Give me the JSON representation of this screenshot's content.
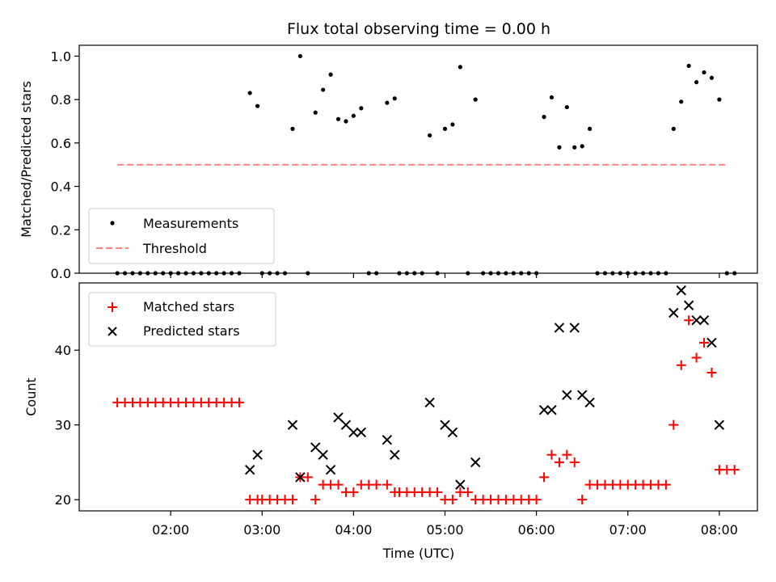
{
  "chart_data": [
    {
      "type": "scatter",
      "title": "Flux total observing time = 0.00 h",
      "ylabel": "Matched/Predicted stars",
      "ylim": [
        0.0,
        1.05
      ],
      "yticks": [
        0.0,
        0.2,
        0.4,
        0.6,
        0.8,
        1.0
      ],
      "ytick_labels": [
        "0.0",
        "0.2",
        "0.4",
        "0.6",
        "0.8",
        "1.0"
      ],
      "grid": false,
      "legend_position": "lower-left",
      "series": [
        {
          "name": "Measurements",
          "marker": "dot",
          "color": "#000000",
          "points": [
            [
              "01:25",
              0
            ],
            [
              "01:30",
              0
            ],
            [
              "01:35",
              0
            ],
            [
              "01:40",
              0
            ],
            [
              "01:45",
              0
            ],
            [
              "01:50",
              0
            ],
            [
              "01:55",
              0
            ],
            [
              "02:00",
              0
            ],
            [
              "02:05",
              0
            ],
            [
              "02:10",
              0
            ],
            [
              "02:15",
              0
            ],
            [
              "02:20",
              0
            ],
            [
              "02:25",
              0
            ],
            [
              "02:30",
              0
            ],
            [
              "02:35",
              0
            ],
            [
              "02:40",
              0
            ],
            [
              "02:45",
              0
            ],
            [
              "02:52",
              0.83
            ],
            [
              "02:57",
              0.77
            ],
            [
              "03:00",
              0
            ],
            [
              "03:05",
              0
            ],
            [
              "03:10",
              0
            ],
            [
              "03:15",
              0
            ],
            [
              "03:20",
              0.665
            ],
            [
              "03:25",
              1.0
            ],
            [
              "03:30",
              0
            ],
            [
              "03:35",
              0.74
            ],
            [
              "03:40",
              0.845
            ],
            [
              "03:45",
              0.915
            ],
            [
              "03:50",
              0.71
            ],
            [
              "03:55",
              0.7
            ],
            [
              "04:00",
              0.725
            ],
            [
              "04:05",
              0.76
            ],
            [
              "04:10",
              0
            ],
            [
              "04:15",
              0
            ],
            [
              "04:22",
              0.785
            ],
            [
              "04:27",
              0.805
            ],
            [
              "04:30",
              0
            ],
            [
              "04:35",
              0
            ],
            [
              "04:40",
              0
            ],
            [
              "04:45",
              0
            ],
            [
              "04:50",
              0.635
            ],
            [
              "04:55",
              0
            ],
            [
              "05:00",
              0.665
            ],
            [
              "05:05",
              0.685
            ],
            [
              "05:10",
              0.95
            ],
            [
              "05:15",
              0
            ],
            [
              "05:20",
              0.8
            ],
            [
              "05:25",
              0
            ],
            [
              "05:30",
              0
            ],
            [
              "05:35",
              0
            ],
            [
              "05:40",
              0
            ],
            [
              "05:45",
              0
            ],
            [
              "05:50",
              0
            ],
            [
              "05:55",
              0
            ],
            [
              "06:00",
              0
            ],
            [
              "06:05",
              0.72
            ],
            [
              "06:10",
              0.81
            ],
            [
              "06:15",
              0.58
            ],
            [
              "06:20",
              0.765
            ],
            [
              "06:25",
              0.58
            ],
            [
              "06:30",
              0.585
            ],
            [
              "06:35",
              0.665
            ],
            [
              "06:40",
              0
            ],
            [
              "06:45",
              0
            ],
            [
              "06:50",
              0
            ],
            [
              "06:55",
              0
            ],
            [
              "07:00",
              0
            ],
            [
              "07:05",
              0
            ],
            [
              "07:10",
              0
            ],
            [
              "07:15",
              0
            ],
            [
              "07:20",
              0
            ],
            [
              "07:25",
              0
            ],
            [
              "07:30",
              0.665
            ],
            [
              "07:35",
              0.79
            ],
            [
              "07:40",
              0.955
            ],
            [
              "07:45",
              0.88
            ],
            [
              "07:50",
              0.925
            ],
            [
              "07:55",
              0.9
            ],
            [
              "08:00",
              0.8
            ],
            [
              "08:05",
              0
            ],
            [
              "08:10",
              0
            ]
          ]
        },
        {
          "name": "Threshold",
          "marker": "dashed-line",
          "color": "#ff7f7f",
          "points": [
            [
              "01:25",
              0.5
            ],
            [
              "08:05",
              0.5
            ]
          ]
        }
      ]
    },
    {
      "type": "scatter",
      "xlabel": "Time (UTC)",
      "ylabel": "Count",
      "ylim": [
        18.5,
        49
      ],
      "yticks": [
        20,
        30,
        40
      ],
      "ytick_labels": [
        "20",
        "30",
        "40"
      ],
      "xlim": [
        "01:00",
        "08:25"
      ],
      "xticks": [
        "02:00",
        "03:00",
        "04:00",
        "05:00",
        "06:00",
        "07:00",
        "08:00"
      ],
      "grid": false,
      "legend_position": "upper-left",
      "series": [
        {
          "name": "Matched stars",
          "marker": "plus",
          "color": "#ff0000",
          "points": [
            [
              "01:25",
              33
            ],
            [
              "01:30",
              33
            ],
            [
              "01:35",
              33
            ],
            [
              "01:40",
              33
            ],
            [
              "01:45",
              33
            ],
            [
              "01:50",
              33
            ],
            [
              "01:55",
              33
            ],
            [
              "02:00",
              33
            ],
            [
              "02:05",
              33
            ],
            [
              "02:10",
              33
            ],
            [
              "02:15",
              33
            ],
            [
              "02:20",
              33
            ],
            [
              "02:25",
              33
            ],
            [
              "02:30",
              33
            ],
            [
              "02:35",
              33
            ],
            [
              "02:40",
              33
            ],
            [
              "02:45",
              33
            ],
            [
              "02:52",
              20
            ],
            [
              "02:57",
              20
            ],
            [
              "03:00",
              20
            ],
            [
              "03:05",
              20
            ],
            [
              "03:10",
              20
            ],
            [
              "03:15",
              20
            ],
            [
              "03:20",
              20
            ],
            [
              "03:25",
              23
            ],
            [
              "03:30",
              23
            ],
            [
              "03:35",
              20
            ],
            [
              "03:40",
              22
            ],
            [
              "03:45",
              22
            ],
            [
              "03:50",
              22
            ],
            [
              "03:55",
              21
            ],
            [
              "04:00",
              21
            ],
            [
              "04:05",
              22
            ],
            [
              "04:10",
              22
            ],
            [
              "04:15",
              22
            ],
            [
              "04:22",
              22
            ],
            [
              "04:27",
              21
            ],
            [
              "04:30",
              21
            ],
            [
              "04:35",
              21
            ],
            [
              "04:40",
              21
            ],
            [
              "04:45",
              21
            ],
            [
              "04:50",
              21
            ],
            [
              "04:55",
              21
            ],
            [
              "05:00",
              20
            ],
            [
              "05:05",
              20
            ],
            [
              "05:10",
              21
            ],
            [
              "05:15",
              21
            ],
            [
              "05:20",
              20
            ],
            [
              "05:25",
              20
            ],
            [
              "05:30",
              20
            ],
            [
              "05:35",
              20
            ],
            [
              "05:40",
              20
            ],
            [
              "05:45",
              20
            ],
            [
              "05:50",
              20
            ],
            [
              "05:55",
              20
            ],
            [
              "06:00",
              20
            ],
            [
              "06:05",
              23
            ],
            [
              "06:10",
              26
            ],
            [
              "06:15",
              25
            ],
            [
              "06:20",
              26
            ],
            [
              "06:25",
              25
            ],
            [
              "06:30",
              20
            ],
            [
              "06:35",
              22
            ],
            [
              "06:40",
              22
            ],
            [
              "06:45",
              22
            ],
            [
              "06:50",
              22
            ],
            [
              "06:55",
              22
            ],
            [
              "07:00",
              22
            ],
            [
              "07:05",
              22
            ],
            [
              "07:10",
              22
            ],
            [
              "07:15",
              22
            ],
            [
              "07:20",
              22
            ],
            [
              "07:25",
              22
            ],
            [
              "07:30",
              30
            ],
            [
              "07:35",
              38
            ],
            [
              "07:40",
              44
            ],
            [
              "07:45",
              39
            ],
            [
              "07:50",
              41
            ],
            [
              "07:55",
              37
            ],
            [
              "08:00",
              24
            ],
            [
              "08:05",
              24
            ],
            [
              "08:10",
              24
            ]
          ]
        },
        {
          "name": "Predicted stars",
          "marker": "x",
          "color": "#000000",
          "points": [
            [
              "02:52",
              24
            ],
            [
              "02:57",
              26
            ],
            [
              "03:20",
              30
            ],
            [
              "03:25",
              23
            ],
            [
              "03:35",
              27
            ],
            [
              "03:40",
              26
            ],
            [
              "03:45",
              24
            ],
            [
              "03:50",
              31
            ],
            [
              "03:55",
              30
            ],
            [
              "04:00",
              29
            ],
            [
              "04:05",
              29
            ],
            [
              "04:22",
              28
            ],
            [
              "04:27",
              26
            ],
            [
              "04:50",
              33
            ],
            [
              "05:00",
              30
            ],
            [
              "05:05",
              29
            ],
            [
              "05:10",
              22
            ],
            [
              "05:20",
              25
            ],
            [
              "06:05",
              32
            ],
            [
              "06:10",
              32
            ],
            [
              "06:15",
              43
            ],
            [
              "06:20",
              34
            ],
            [
              "06:25",
              43
            ],
            [
              "06:30",
              34
            ],
            [
              "06:35",
              33
            ],
            [
              "07:30",
              45
            ],
            [
              "07:35",
              48
            ],
            [
              "07:40",
              46
            ],
            [
              "07:45",
              44
            ],
            [
              "07:50",
              44
            ],
            [
              "07:55",
              41
            ],
            [
              "08:00",
              30
            ]
          ]
        }
      ]
    }
  ]
}
